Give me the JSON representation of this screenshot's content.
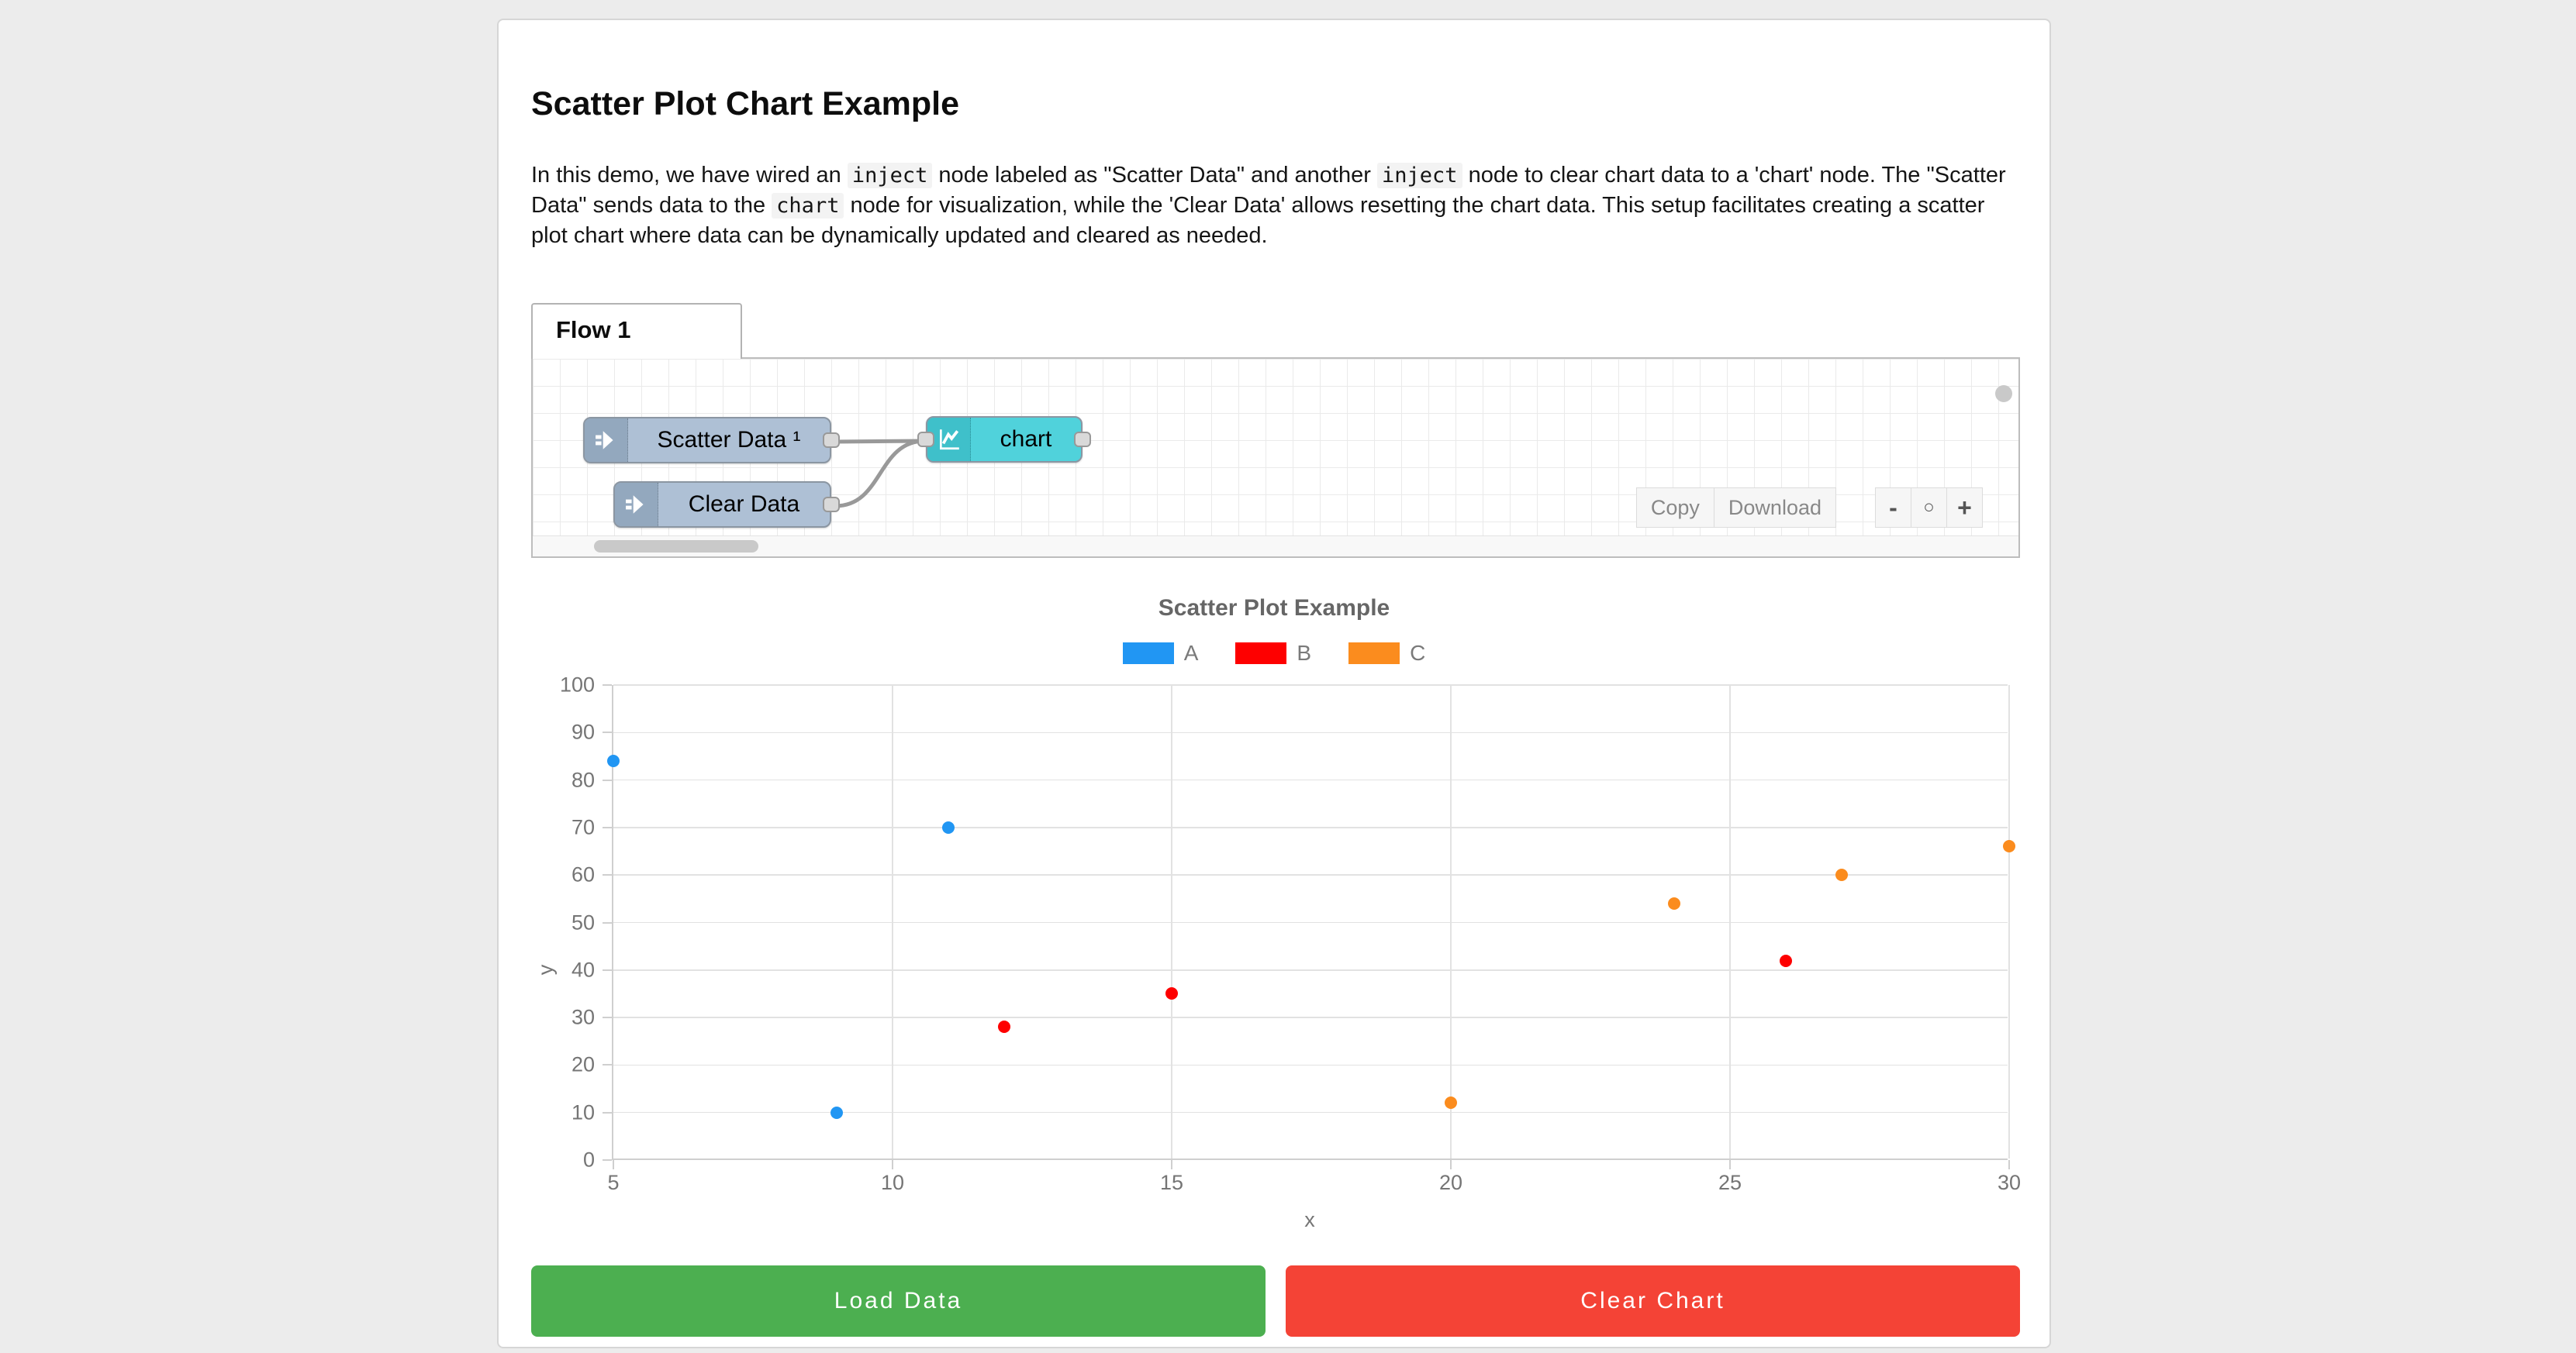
{
  "page": {
    "heading": "Scatter Plot Chart Example"
  },
  "intro_parts": [
    {
      "t": "text",
      "v": "In this demo, we have wired an "
    },
    {
      "t": "code",
      "v": "inject"
    },
    {
      "t": "text",
      "v": " node labeled as \"Scatter Data\" and another "
    },
    {
      "t": "code",
      "v": "inject"
    },
    {
      "t": "text",
      "v": " node to clear chart data to a 'chart' node. The \"Scatter Data\" sends data to the "
    },
    {
      "t": "code",
      "v": "chart"
    },
    {
      "t": "text",
      "v": " node for visualization, while the 'Clear Data' allows resetting the chart data. This setup facilitates creating a scatter plot chart where data can be dynamically updated and cleared as needed."
    }
  ],
  "flow": {
    "tab_label": "Flow 1",
    "nodes": {
      "inject_scatter": {
        "label": "Scatter Data ¹"
      },
      "inject_clear": {
        "label": "Clear Data"
      },
      "chart": {
        "label": "chart"
      }
    },
    "actions": {
      "copy": "Copy",
      "download": "Download"
    },
    "zoom": {
      "out": "-",
      "reset": "○",
      "in": "+"
    }
  },
  "chart_data": {
    "type": "scatter",
    "title": "Scatter Plot Example",
    "xlabel": "x",
    "ylabel": "y",
    "xlim": [
      5,
      30
    ],
    "ylim": [
      0,
      100
    ],
    "xticks": [
      5,
      10,
      15,
      20,
      25,
      30
    ],
    "yticks": [
      0,
      10,
      20,
      30,
      40,
      50,
      60,
      70,
      80,
      90,
      100
    ],
    "grid": true,
    "legend_position": "top-center",
    "series": [
      {
        "name": "A",
        "color": "#2196f3",
        "points": [
          [
            5,
            84
          ],
          [
            9,
            10
          ],
          [
            11,
            70
          ]
        ]
      },
      {
        "name": "B",
        "color": "#fe0000",
        "points": [
          [
            12,
            28
          ],
          [
            15,
            35
          ],
          [
            26,
            42
          ]
        ]
      },
      {
        "name": "C",
        "color": "#fb8c1e",
        "points": [
          [
            20,
            12
          ],
          [
            24,
            54
          ],
          [
            27,
            60
          ],
          [
            30,
            66
          ]
        ]
      }
    ]
  },
  "buttons": {
    "load": "Load Data",
    "clear": "Clear Chart"
  },
  "colors": {
    "load_button": "#4caf50",
    "clear_button": "#f44336",
    "inject_node": "#aec0d5",
    "chart_node": "#50d2db",
    "wire": "#999999",
    "page_background": "#ececec"
  }
}
